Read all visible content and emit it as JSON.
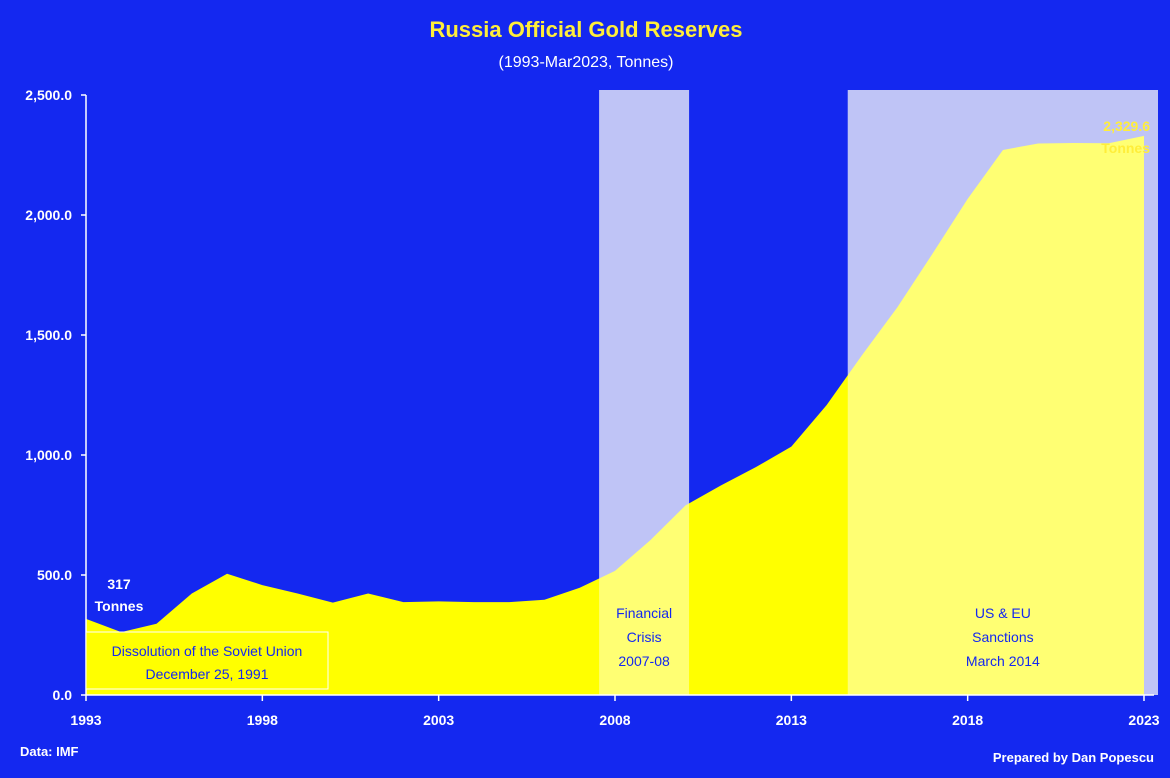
{
  "chart_data": {
    "type": "area",
    "title": "Russia Official Gold Reserves",
    "subtitle": "(1993-Mar2023, Tonnes)",
    "x_ticks": [
      "1993",
      "1998",
      "2003",
      "2008",
      "2013",
      "2018",
      "2023"
    ],
    "y_ticks": [
      "0.0",
      "500.0",
      "1,000.0",
      "1,500.0",
      "2,000.0",
      "2,500.0"
    ],
    "ylim": [
      0,
      2500
    ],
    "xlim": [
      1993,
      2023
    ],
    "grid": false,
    "series": [
      {
        "x": [
          1993,
          1994,
          1995,
          1996,
          1997,
          1998,
          1999,
          2000,
          2001,
          2002,
          2003,
          2004,
          2005,
          2006,
          2007,
          2008,
          2009,
          2010,
          2011,
          2012,
          2013,
          2014,
          2015,
          2016,
          2017,
          2018,
          2019,
          2020,
          2021,
          2022,
          2023
        ],
        "y": [
          317,
          262,
          297,
          423,
          505,
          458,
          423,
          385,
          423,
          387,
          390,
          387,
          387,
          397,
          447,
          517,
          645,
          790,
          873,
          950,
          1035,
          1208,
          1415,
          1614,
          1838,
          2067,
          2271,
          2298,
          2300,
          2299,
          2329.6
        ],
        "color": "#ffff00"
      }
    ],
    "shaded_periods": [
      {
        "start": 2007.55,
        "end": 2010.1,
        "label_lines": [
          "Financial",
          "Crisis",
          "2007-08"
        ]
      },
      {
        "start": 2014.6,
        "end": 2023.7,
        "label_lines": [
          "US & EU",
          "Sanctions",
          "March 2014"
        ]
      }
    ],
    "annotations": {
      "start_value": {
        "x": 1993,
        "y": 317,
        "lines": [
          "317",
          "Tonnes"
        ]
      },
      "end_value": {
        "x": 2023,
        "y": 2329.6,
        "lines": [
          "2,329.6",
          "Tonnes"
        ]
      },
      "soviet_box": {
        "lines": [
          "Dissolution of the Soviet Union",
          "December 25, 1991"
        ]
      }
    },
    "source": "Data: IMF",
    "credit": "Prepared by Dan Popescu"
  }
}
